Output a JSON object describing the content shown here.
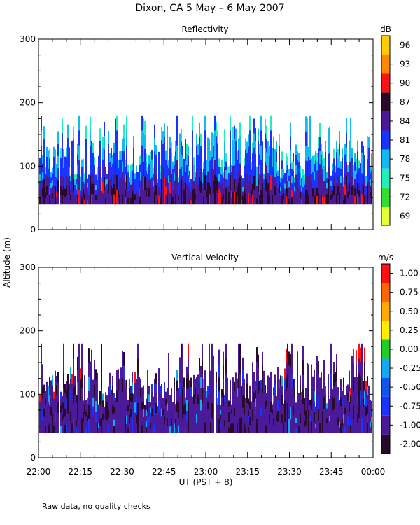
{
  "page": {
    "title": "Dixon, CA  5 May –  6 May 2007",
    "footer": "Raw data, no quality checks"
  },
  "colors": {
    "reflectivity": [
      "#e6ff33",
      "#33dd33",
      "#22eebb",
      "#11bbee",
      "#1a33ff",
      "#4b1a99",
      "#2a0a2a",
      "#ff1111",
      "#ff8800",
      "#ffcc00"
    ],
    "velocity": [
      "#2a0a2a",
      "#4b1a99",
      "#1a33ff",
      "#1155ee",
      "#11aaee",
      "#22cc22",
      "#ffee00",
      "#ffaa00",
      "#ff6600",
      "#ff1111"
    ]
  },
  "chart_data": [
    {
      "type": "heatmap",
      "title": "Reflectivity",
      "ylabel": "Altitude (m)",
      "xlabel": "UT  (PST + 8)",
      "x_ticks": [
        "22:00",
        "22:15",
        "22:30",
        "22:45",
        "23:00",
        "23:15",
        "23:30",
        "23:45",
        "00:00"
      ],
      "x_range_min": [
        0,
        120
      ],
      "y_ticks": [
        0,
        100,
        200,
        300
      ],
      "ylim": [
        0,
        300
      ],
      "colorbar": {
        "unit": "dB",
        "ticks": [
          "69",
          "72",
          "75",
          "78",
          "81",
          "84",
          "87",
          "90",
          "93",
          "96"
        ]
      },
      "data_floor_m": 40,
      "data_top_range_m": [
        120,
        180
      ]
    },
    {
      "type": "heatmap",
      "title": "Vertical Velocity",
      "ylabel": "Altitude (m)",
      "xlabel": "UT  (PST + 8)",
      "x_ticks": [
        "22:00",
        "22:15",
        "22:30",
        "22:45",
        "23:00",
        "23:15",
        "23:30",
        "23:45",
        "00:00"
      ],
      "x_range_min": [
        0,
        120
      ],
      "y_ticks": [
        0,
        100,
        200,
        300
      ],
      "ylim": [
        0,
        300
      ],
      "colorbar": {
        "unit": "m/s",
        "ticks": [
          "-2.00",
          "-1.00",
          "-0.75",
          "-0.50",
          "-0.25",
          "0.00",
          "0.25",
          "0.50",
          "0.75",
          "1.00"
        ]
      },
      "data_floor_m": 40,
      "data_top_range_m": [
        120,
        180
      ]
    }
  ]
}
